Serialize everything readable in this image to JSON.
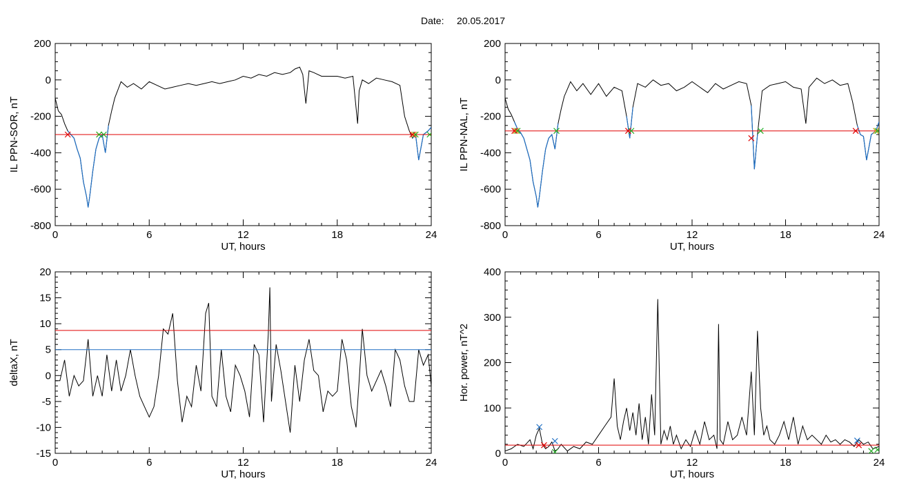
{
  "header": {
    "date_label": "Date:",
    "date_value": "20.05.2017"
  },
  "colors": {
    "trace": "#000000",
    "threshold_red": "#e00000",
    "threshold_blue": "#1f6fc4",
    "marker_green": "#22aa22",
    "marker_orange": "#d4a017",
    "marker_blue": "#1f6fc4"
  },
  "chart_data": [
    {
      "id": "il-sor",
      "type": "line",
      "ylabel": "IL PPN-SOR, nT",
      "xlabel": "UT, hours",
      "xlim": [
        0,
        24
      ],
      "ylim": [
        -800,
        200
      ],
      "xticks": [
        "0",
        "6",
        "12",
        "18",
        "24"
      ],
      "yticks": [
        "200",
        "0",
        "-200",
        "-400",
        "-600",
        "-800"
      ],
      "series": [
        {
          "x": [
            0,
            0.2,
            0.4,
            0.6,
            0.8,
            1.0,
            1.2,
            1.4,
            1.6,
            1.8,
            2.0,
            2.1,
            2.2,
            2.4,
            2.6,
            2.8,
            3.0,
            3.2,
            3.4,
            3.6,
            3.8,
            4.2,
            4.6,
            5.0,
            5.5,
            6.0,
            6.5,
            7.0,
            7.5,
            8.0,
            8.5,
            9.0,
            9.5,
            10,
            10.5,
            11,
            11.5,
            12,
            12.5,
            13,
            13.5,
            14,
            14.5,
            15,
            15.3,
            15.6,
            15.8,
            16.0,
            16.2,
            16.5,
            17,
            17.5,
            18,
            18.5,
            19,
            19.3,
            19.4,
            19.6,
            20,
            20.5,
            21,
            21.5,
            22,
            22.3,
            22.6,
            22.8,
            23.0,
            23.2,
            23.5,
            23.8,
            24
          ],
          "values": [
            -100,
            -170,
            -190,
            -240,
            -280,
            -300,
            -320,
            -380,
            -430,
            -560,
            -640,
            -700,
            -640,
            -500,
            -380,
            -320,
            -300,
            -400,
            -250,
            -170,
            -100,
            -10,
            -40,
            -20,
            -50,
            -10,
            -30,
            -50,
            -40,
            -30,
            -20,
            -30,
            -20,
            -10,
            -20,
            -10,
            0,
            20,
            10,
            30,
            20,
            40,
            30,
            40,
            60,
            70,
            30,
            -130,
            50,
            40,
            20,
            20,
            20,
            10,
            20,
            -240,
            -60,
            0,
            -20,
            10,
            0,
            -10,
            -30,
            -200,
            -280,
            -320,
            -300,
            -440,
            -300,
            -280,
            -260
          ]
        }
      ],
      "threshold_red": -300,
      "markers_red": [
        [
          0.8,
          -300
        ],
        [
          22.8,
          -300
        ]
      ],
      "markers_green": [
        [
          2.8,
          -300
        ],
        [
          3.1,
          -300
        ],
        [
          23.0,
          -300
        ],
        [
          23.9,
          -300
        ]
      ],
      "markers_orange": [
        [
          2.8,
          -300
        ],
        [
          22.9,
          -300
        ]
      ],
      "blue_segments": [
        [
          0.8,
          3.3
        ],
        [
          22.8,
          24
        ]
      ]
    },
    {
      "id": "il-nal",
      "type": "line",
      "ylabel": "IL PPN-NAL, nT",
      "xlabel": "UT, hours",
      "xlim": [
        0,
        24
      ],
      "ylim": [
        -800,
        200
      ],
      "xticks": [
        "0",
        "6",
        "12",
        "18",
        "24"
      ],
      "yticks": [
        "200",
        "0",
        "-200",
        "-400",
        "-600",
        "-800"
      ],
      "series": [
        {
          "x": [
            0,
            0.2,
            0.4,
            0.6,
            0.8,
            1.0,
            1.2,
            1.4,
            1.6,
            1.8,
            2.0,
            2.1,
            2.2,
            2.4,
            2.6,
            2.8,
            3.0,
            3.2,
            3.4,
            3.6,
            3.8,
            4.2,
            4.6,
            5.0,
            5.5,
            6.0,
            6.5,
            7.0,
            7.5,
            7.8,
            8.0,
            8.2,
            8.5,
            9.0,
            9.5,
            10,
            10.5,
            11,
            11.5,
            12,
            12.5,
            13,
            13.5,
            14,
            14.5,
            15,
            15.5,
            15.8,
            16.0,
            16.2,
            16.5,
            17,
            17.5,
            18,
            18.5,
            19,
            19.3,
            19.5,
            20,
            20.5,
            21,
            21.5,
            22,
            22.3,
            22.6,
            22.8,
            23.0,
            23.2,
            23.5,
            23.8,
            24
          ],
          "values": [
            -100,
            -160,
            -190,
            -230,
            -270,
            -290,
            -320,
            -380,
            -440,
            -560,
            -640,
            -700,
            -640,
            -500,
            -380,
            -320,
            -300,
            -380,
            -240,
            -160,
            -90,
            -10,
            -60,
            -20,
            -80,
            -20,
            -90,
            -40,
            -60,
            -200,
            -320,
            -150,
            -20,
            -40,
            0,
            -30,
            -20,
            -60,
            -40,
            -10,
            -40,
            -70,
            -20,
            -50,
            -30,
            -10,
            -20,
            -140,
            -490,
            -300,
            -60,
            -30,
            -20,
            -10,
            -40,
            -50,
            -240,
            -40,
            10,
            -20,
            0,
            -30,
            -20,
            -120,
            -250,
            -300,
            -310,
            -440,
            -300,
            -280,
            -230
          ]
        }
      ],
      "threshold_red": -280,
      "markers_red": [
        [
          0.6,
          -280
        ],
        [
          7.9,
          -280
        ],
        [
          15.8,
          -320
        ],
        [
          22.5,
          -280
        ]
      ],
      "markers_green": [
        [
          0.8,
          -280
        ],
        [
          3.3,
          -280
        ],
        [
          8.1,
          -280
        ],
        [
          16.4,
          -280
        ],
        [
          23.9,
          -280
        ]
      ],
      "markers_orange": [
        [
          0.7,
          -280
        ],
        [
          23.8,
          -280
        ]
      ],
      "blue_segments": [
        [
          0.7,
          3.4
        ],
        [
          7.9,
          8.3
        ],
        [
          15.8,
          16.3
        ],
        [
          22.5,
          24
        ]
      ]
    },
    {
      "id": "deltax",
      "type": "line",
      "ylabel": "deltaX, nT",
      "xlabel": "UT, hours",
      "xlim": [
        0,
        24
      ],
      "ylim": [
        -15,
        20
      ],
      "xticks": [
        "0",
        "6",
        "12",
        "18",
        "24"
      ],
      "yticks": [
        "20",
        "15",
        "10",
        "5",
        "0",
        "-5",
        "-10",
        "-15"
      ],
      "series": [
        {
          "x": [
            0,
            0.3,
            0.6,
            0.9,
            1.2,
            1.5,
            1.8,
            2.1,
            2.4,
            2.7,
            3.0,
            3.3,
            3.6,
            3.9,
            4.2,
            4.5,
            4.8,
            5.1,
            5.4,
            5.7,
            6.0,
            6.3,
            6.6,
            6.9,
            7.2,
            7.5,
            7.8,
            8.1,
            8.4,
            8.7,
            9.0,
            9.3,
            9.6,
            9.8,
            10.0,
            10.3,
            10.6,
            10.9,
            11.2,
            11.5,
            11.8,
            12.1,
            12.4,
            12.7,
            13.0,
            13.3,
            13.6,
            13.7,
            13.8,
            14.1,
            14.4,
            14.7,
            15.0,
            15.3,
            15.6,
            15.9,
            16.2,
            16.5,
            16.8,
            17.1,
            17.4,
            17.7,
            18.0,
            18.3,
            18.6,
            18.9,
            19.2,
            19.4,
            19.6,
            19.9,
            20.2,
            20.5,
            20.8,
            21.1,
            21.4,
            21.7,
            22.0,
            22.3,
            22.6,
            22.9,
            23.2,
            23.5,
            23.8,
            24
          ],
          "values": [
            -1,
            -1,
            3,
            -4,
            0,
            -2,
            -1,
            7,
            -4,
            0,
            -4,
            4,
            -3,
            3,
            -3,
            0,
            5,
            0,
            -4,
            -6,
            -8,
            -6,
            0,
            9,
            8,
            12,
            -1,
            -9,
            -4,
            -6,
            2,
            -3,
            12,
            14,
            -4,
            -6,
            5,
            -4,
            -7,
            2,
            0,
            -3,
            -8,
            6,
            4,
            -9,
            8,
            17,
            -5,
            6,
            1,
            -5,
            -11,
            2,
            -5,
            3,
            7,
            1,
            0,
            -7,
            -3,
            -4,
            -3,
            7,
            3,
            -6,
            -10,
            -1,
            9,
            0,
            -3,
            -1,
            1,
            -2,
            -6,
            5,
            3,
            -2,
            -5,
            -5,
            5,
            2,
            4,
            -2
          ]
        }
      ],
      "threshold_red": 8.7,
      "threshold_blue": 5
    },
    {
      "id": "hor-power",
      "type": "line",
      "ylabel": "Hor. power, nT^2",
      "xlabel": "UT, hours",
      "xlim": [
        0,
        24
      ],
      "ylim": [
        0,
        400
      ],
      "xticks": [
        "0",
        "6",
        "12",
        "18",
        "24"
      ],
      "yticks": [
        "400",
        "300",
        "200",
        "100",
        "0"
      ],
      "series": [
        {
          "x": [
            0,
            0.4,
            0.8,
            1.2,
            1.6,
            1.8,
            2.0,
            2.2,
            2.4,
            2.6,
            2.8,
            3.0,
            3.2,
            3.4,
            3.6,
            4.0,
            4.4,
            4.8,
            5.2,
            5.6,
            6.0,
            6.4,
            6.8,
            7.0,
            7.2,
            7.4,
            7.6,
            7.8,
            8.0,
            8.2,
            8.4,
            8.6,
            8.8,
            9.0,
            9.2,
            9.4,
            9.6,
            9.8,
            10.0,
            10.2,
            10.4,
            10.6,
            10.8,
            11.0,
            11.3,
            11.6,
            11.9,
            12.2,
            12.5,
            12.8,
            13.1,
            13.4,
            13.6,
            13.7,
            13.8,
            14.0,
            14.3,
            14.6,
            14.9,
            15.2,
            15.5,
            15.8,
            16.0,
            16.2,
            16.4,
            16.6,
            16.8,
            17.0,
            17.3,
            17.6,
            17.9,
            18.2,
            18.5,
            18.8,
            19.1,
            19.4,
            19.7,
            20.0,
            20.3,
            20.6,
            20.9,
            21.2,
            21.5,
            21.8,
            22.1,
            22.4,
            22.7,
            23.0,
            23.3,
            23.6,
            24
          ],
          "values": [
            5,
            10,
            20,
            15,
            30,
            10,
            40,
            55,
            20,
            10,
            15,
            25,
            5,
            10,
            20,
            5,
            15,
            10,
            25,
            20,
            40,
            60,
            80,
            165,
            60,
            30,
            70,
            100,
            50,
            90,
            40,
            110,
            30,
            80,
            20,
            130,
            40,
            340,
            20,
            50,
            30,
            60,
            20,
            40,
            10,
            30,
            15,
            50,
            20,
            70,
            30,
            40,
            10,
            285,
            30,
            20,
            70,
            30,
            40,
            80,
            40,
            180,
            40,
            270,
            100,
            40,
            60,
            30,
            20,
            40,
            70,
            30,
            80,
            20,
            60,
            30,
            40,
            30,
            20,
            40,
            25,
            30,
            20,
            30,
            25,
            15,
            30,
            20,
            25,
            10,
            15
          ]
        }
      ],
      "threshold_red": 18,
      "markers_blue": [
        [
          2.2,
          58
        ],
        [
          3.2,
          27
        ],
        [
          22.6,
          28
        ]
      ],
      "markers_red": [
        [
          2.5,
          18
        ],
        [
          22.7,
          18
        ]
      ],
      "markers_green": [
        [
          3.2,
          3
        ],
        [
          23.5,
          5
        ],
        [
          23.9,
          8
        ]
      ]
    }
  ]
}
